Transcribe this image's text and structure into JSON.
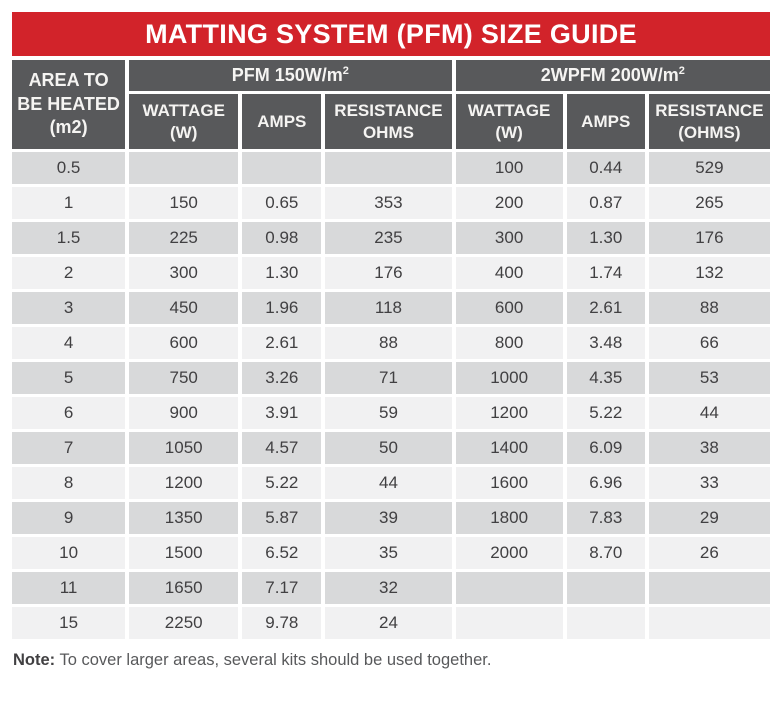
{
  "title": "MATTING SYSTEM (PFM) SIZE GUIDE",
  "colors": {
    "accent_red": "#d2232a",
    "header_gray": "#58595b",
    "row_dark": "#d8d9da",
    "row_light": "#f1f1f2",
    "text_dark": "#414042"
  },
  "table": {
    "area_header": {
      "lines": [
        "AREA TO",
        "BE HEATED",
        "(m2)"
      ]
    },
    "groups": [
      {
        "text": "PFM 150W/m",
        "sup": "2"
      },
      {
        "text": "2WPFM 200W/m",
        "sup": "2"
      }
    ],
    "subheaders": [
      "WATTAGE (W)",
      "AMPS",
      "RESISTANCE OHMS",
      "WATTAGE (W)",
      "AMPS",
      "RESISTANCE (OHMS)"
    ],
    "rows": [
      {
        "area": "0.5",
        "cells": [
          "",
          "",
          "",
          "100",
          "0.44",
          "529"
        ]
      },
      {
        "area": "1",
        "cells": [
          "150",
          "0.65",
          "353",
          "200",
          "0.87",
          "265"
        ]
      },
      {
        "area": "1.5",
        "cells": [
          "225",
          "0.98",
          "235",
          "300",
          "1.30",
          "176"
        ]
      },
      {
        "area": "2",
        "cells": [
          "300",
          "1.30",
          "176",
          "400",
          "1.74",
          "132"
        ]
      },
      {
        "area": "3",
        "cells": [
          "450",
          "1.96",
          "118",
          "600",
          "2.61",
          "88"
        ]
      },
      {
        "area": "4",
        "cells": [
          "600",
          "2.61",
          "88",
          "800",
          "3.48",
          "66"
        ]
      },
      {
        "area": "5",
        "cells": [
          "750",
          "3.26",
          "71",
          "1000",
          "4.35",
          "53"
        ]
      },
      {
        "area": "6",
        "cells": [
          "900",
          "3.91",
          "59",
          "1200",
          "5.22",
          "44"
        ]
      },
      {
        "area": "7",
        "cells": [
          "1050",
          "4.57",
          "50",
          "1400",
          "6.09",
          "38"
        ]
      },
      {
        "area": "8",
        "cells": [
          "1200",
          "5.22",
          "44",
          "1600",
          "6.96",
          "33"
        ]
      },
      {
        "area": "9",
        "cells": [
          "1350",
          "5.87",
          "39",
          "1800",
          "7.83",
          "29"
        ]
      },
      {
        "area": "10",
        "cells": [
          "1500",
          "6.52",
          "35",
          "2000",
          "8.70",
          "26"
        ]
      },
      {
        "area": "11",
        "cells": [
          "1650",
          "7.17",
          "32",
          null,
          null,
          null
        ]
      },
      {
        "area": "15",
        "cells": [
          "2250",
          "9.78",
          "24",
          null,
          null,
          null
        ]
      }
    ]
  },
  "note": {
    "label": "Note:",
    "text": " To cover larger areas, several kits should be used together."
  }
}
